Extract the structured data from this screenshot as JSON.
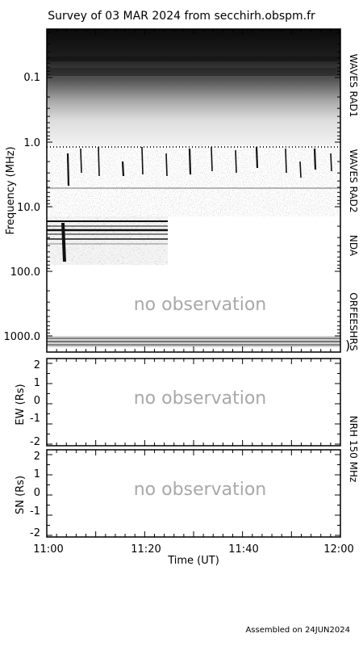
{
  "title": "Survey of 03 MAR 2024 from secchirh.obspm.fr",
  "footer": "Assembled on 24JUN2024",
  "chart_data": [
    {
      "type": "heatmap",
      "description_label": "dynamic spectrum",
      "ylabel": "Frequency (MHz)",
      "yscale": "log",
      "yticks": [
        "0.1",
        "1.0",
        "10.0",
        "100.0",
        "1000.0"
      ],
      "instruments": [
        "WAVES RAD1",
        "WAVES RAD2",
        "NDA",
        "ORFEES",
        "HRS"
      ],
      "annotations": [
        "no observation"
      ]
    },
    {
      "type": "scatter",
      "ylabel": "EW (Rs)",
      "yticks": [
        "2",
        "1",
        "0",
        "-1",
        "-2"
      ],
      "ylim": [
        -2,
        2
      ],
      "annotations": [
        "no observation"
      ]
    },
    {
      "type": "scatter",
      "ylabel": "SN (Rs)",
      "yticks": [
        "2",
        "1",
        "0",
        "-1",
        "-2"
      ],
      "ylim": [
        -2,
        2
      ],
      "instrument": "NRH 150 MHz",
      "annotations": [
        "no observation"
      ],
      "xlabel": "Time (UT)",
      "xticks": [
        "11:00",
        "11:20",
        "11:40",
        "12:00"
      ]
    }
  ]
}
